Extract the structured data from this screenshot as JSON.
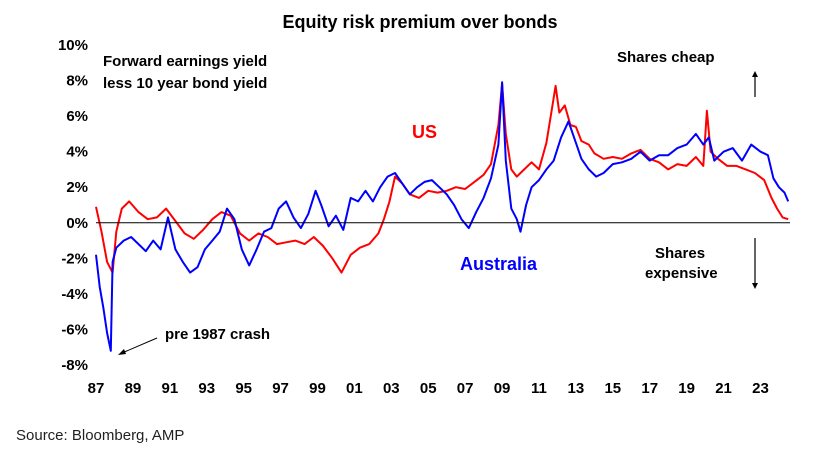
{
  "chart_data": {
    "type": "line",
    "title": "Equity risk premium over bonds",
    "subtitle_lines": [
      "Forward earnings yield",
      "less 10 year bond yield"
    ],
    "xlabel": "",
    "ylabel": "",
    "x_range": [
      1987.0,
      2024.6
    ],
    "ylim": [
      -8,
      10
    ],
    "y_ticks": [
      -8,
      -6,
      -4,
      -2,
      0,
      2,
      4,
      6,
      8,
      10
    ],
    "y_tick_labels": [
      "-8%",
      "-6%",
      "-4%",
      "-2%",
      "0%",
      "2%",
      "4%",
      "6%",
      "8%",
      "10%"
    ],
    "x_ticks": [
      1987,
      1989,
      1991,
      1993,
      1995,
      1997,
      1999,
      2001,
      2003,
      2005,
      2007,
      2009,
      2011,
      2013,
      2015,
      2017,
      2019,
      2021,
      2023
    ],
    "x_tick_labels": [
      "87",
      "89",
      "91",
      "93",
      "95",
      "97",
      "99",
      "01",
      "03",
      "05",
      "07",
      "09",
      "11",
      "13",
      "15",
      "17",
      "19",
      "21",
      "23"
    ],
    "grid": false,
    "series": [
      {
        "name": "US",
        "color": "#ff0000",
        "points": [
          [
            1987.0,
            0.9
          ],
          [
            1987.3,
            -0.5
          ],
          [
            1987.6,
            -2.2
          ],
          [
            1987.9,
            -2.8
          ],
          [
            1988.1,
            -0.5
          ],
          [
            1988.4,
            0.8
          ],
          [
            1988.8,
            1.2
          ],
          [
            1989.3,
            0.6
          ],
          [
            1989.8,
            0.2
          ],
          [
            1990.3,
            0.3
          ],
          [
            1990.8,
            0.8
          ],
          [
            1991.3,
            0.1
          ],
          [
            1991.8,
            -0.6
          ],
          [
            1992.3,
            -0.9
          ],
          [
            1992.8,
            -0.4
          ],
          [
            1993.3,
            0.2
          ],
          [
            1993.8,
            0.6
          ],
          [
            1994.3,
            0.4
          ],
          [
            1994.8,
            -0.6
          ],
          [
            1995.3,
            -1.0
          ],
          [
            1995.8,
            -0.6
          ],
          [
            1996.3,
            -0.8
          ],
          [
            1996.8,
            -1.2
          ],
          [
            1997.3,
            -1.1
          ],
          [
            1997.8,
            -1.0
          ],
          [
            1998.3,
            -1.2
          ],
          [
            1998.8,
            -0.8
          ],
          [
            1999.3,
            -1.3
          ],
          [
            1999.8,
            -2.0
          ],
          [
            2000.3,
            -2.8
          ],
          [
            2000.8,
            -1.8
          ],
          [
            2001.3,
            -1.4
          ],
          [
            2001.8,
            -1.2
          ],
          [
            2002.3,
            -0.6
          ],
          [
            2002.6,
            0.2
          ],
          [
            2002.9,
            1.2
          ],
          [
            2003.2,
            2.6
          ],
          [
            2003.6,
            2.2
          ],
          [
            2004.0,
            1.6
          ],
          [
            2004.5,
            1.4
          ],
          [
            2005.0,
            1.8
          ],
          [
            2005.5,
            1.7
          ],
          [
            2006.0,
            1.8
          ],
          [
            2006.5,
            2.0
          ],
          [
            2007.0,
            1.9
          ],
          [
            2007.5,
            2.3
          ],
          [
            2008.0,
            2.7
          ],
          [
            2008.4,
            3.3
          ],
          [
            2008.8,
            5.5
          ],
          [
            2009.0,
            7.8
          ],
          [
            2009.2,
            5.0
          ],
          [
            2009.5,
            3.0
          ],
          [
            2009.8,
            2.6
          ],
          [
            2010.2,
            3.0
          ],
          [
            2010.6,
            3.4
          ],
          [
            2011.0,
            3.0
          ],
          [
            2011.4,
            4.5
          ],
          [
            2011.7,
            6.4
          ],
          [
            2011.9,
            7.7
          ],
          [
            2012.1,
            6.2
          ],
          [
            2012.4,
            6.6
          ],
          [
            2012.7,
            5.5
          ],
          [
            2013.0,
            5.4
          ],
          [
            2013.3,
            4.6
          ],
          [
            2013.7,
            4.4
          ],
          [
            2014.0,
            3.9
          ],
          [
            2014.5,
            3.6
          ],
          [
            2015.0,
            3.7
          ],
          [
            2015.5,
            3.6
          ],
          [
            2016.0,
            3.9
          ],
          [
            2016.5,
            4.1
          ],
          [
            2017.0,
            3.6
          ],
          [
            2017.5,
            3.4
          ],
          [
            2018.0,
            3.0
          ],
          [
            2018.5,
            3.3
          ],
          [
            2019.0,
            3.2
          ],
          [
            2019.5,
            3.7
          ],
          [
            2019.9,
            3.2
          ],
          [
            2020.1,
            6.3
          ],
          [
            2020.3,
            4.0
          ],
          [
            2020.7,
            3.6
          ],
          [
            2021.2,
            3.2
          ],
          [
            2021.7,
            3.2
          ],
          [
            2022.2,
            3.0
          ],
          [
            2022.7,
            2.8
          ],
          [
            2023.2,
            2.4
          ],
          [
            2023.6,
            1.4
          ],
          [
            2023.9,
            0.8
          ],
          [
            2024.2,
            0.3
          ],
          [
            2024.5,
            0.2
          ]
        ]
      },
      {
        "name": "Australia",
        "color": "#0000ff",
        "points": [
          [
            1987.0,
            -1.8
          ],
          [
            1987.2,
            -3.6
          ],
          [
            1987.4,
            -4.8
          ],
          [
            1987.6,
            -6.2
          ],
          [
            1987.8,
            -7.2
          ],
          [
            1987.9,
            -2.2
          ],
          [
            1988.1,
            -1.4
          ],
          [
            1988.5,
            -1.0
          ],
          [
            1988.9,
            -0.8
          ],
          [
            1989.3,
            -1.2
          ],
          [
            1989.7,
            -1.6
          ],
          [
            1990.1,
            -1.0
          ],
          [
            1990.5,
            -1.5
          ],
          [
            1990.9,
            0.3
          ],
          [
            1991.3,
            -1.5
          ],
          [
            1991.7,
            -2.2
          ],
          [
            1992.1,
            -2.8
          ],
          [
            1992.5,
            -2.5
          ],
          [
            1992.9,
            -1.5
          ],
          [
            1993.3,
            -1.0
          ],
          [
            1993.7,
            -0.5
          ],
          [
            1994.1,
            0.8
          ],
          [
            1994.5,
            0.2
          ],
          [
            1994.9,
            -1.5
          ],
          [
            1995.3,
            -2.4
          ],
          [
            1995.7,
            -1.5
          ],
          [
            1996.1,
            -0.5
          ],
          [
            1996.5,
            -0.3
          ],
          [
            1996.9,
            0.8
          ],
          [
            1997.3,
            1.2
          ],
          [
            1997.7,
            0.3
          ],
          [
            1998.1,
            -0.3
          ],
          [
            1998.5,
            0.5
          ],
          [
            1998.9,
            1.8
          ],
          [
            1999.2,
            1.0
          ],
          [
            1999.6,
            -0.2
          ],
          [
            2000.0,
            0.4
          ],
          [
            2000.4,
            -0.4
          ],
          [
            2000.8,
            1.4
          ],
          [
            2001.2,
            1.2
          ],
          [
            2001.6,
            1.8
          ],
          [
            2002.0,
            1.2
          ],
          [
            2002.4,
            2.0
          ],
          [
            2002.8,
            2.6
          ],
          [
            2003.2,
            2.8
          ],
          [
            2003.6,
            2.2
          ],
          [
            2004.0,
            1.6
          ],
          [
            2004.4,
            2.0
          ],
          [
            2004.8,
            2.3
          ],
          [
            2005.2,
            2.4
          ],
          [
            2005.6,
            2.0
          ],
          [
            2006.0,
            1.6
          ],
          [
            2006.4,
            1.0
          ],
          [
            2006.8,
            0.2
          ],
          [
            2007.2,
            -0.3
          ],
          [
            2007.6,
            0.6
          ],
          [
            2008.0,
            1.4
          ],
          [
            2008.4,
            2.5
          ],
          [
            2008.8,
            4.4
          ],
          [
            2009.0,
            7.9
          ],
          [
            2009.2,
            3.5
          ],
          [
            2009.5,
            0.8
          ],
          [
            2009.8,
            0.2
          ],
          [
            2010.0,
            -0.5
          ],
          [
            2010.3,
            1.0
          ],
          [
            2010.6,
            2.0
          ],
          [
            2011.0,
            2.4
          ],
          [
            2011.4,
            3.0
          ],
          [
            2011.8,
            3.5
          ],
          [
            2012.2,
            4.8
          ],
          [
            2012.6,
            5.7
          ],
          [
            2013.0,
            4.5
          ],
          [
            2013.3,
            3.6
          ],
          [
            2013.7,
            3.0
          ],
          [
            2014.1,
            2.6
          ],
          [
            2014.5,
            2.8
          ],
          [
            2015.0,
            3.3
          ],
          [
            2015.5,
            3.4
          ],
          [
            2016.0,
            3.6
          ],
          [
            2016.5,
            4.0
          ],
          [
            2017.0,
            3.5
          ],
          [
            2017.5,
            3.8
          ],
          [
            2018.0,
            3.8
          ],
          [
            2018.5,
            4.2
          ],
          [
            2019.0,
            4.4
          ],
          [
            2019.5,
            5.0
          ],
          [
            2019.9,
            4.4
          ],
          [
            2020.2,
            4.8
          ],
          [
            2020.5,
            3.5
          ],
          [
            2021.0,
            4.0
          ],
          [
            2021.5,
            4.2
          ],
          [
            2022.0,
            3.5
          ],
          [
            2022.5,
            4.4
          ],
          [
            2023.0,
            4.0
          ],
          [
            2023.4,
            3.8
          ],
          [
            2023.7,
            2.5
          ],
          [
            2024.0,
            2.0
          ],
          [
            2024.3,
            1.7
          ],
          [
            2024.5,
            1.2
          ]
        ]
      }
    ],
    "annotations": {
      "shares_cheap": "Shares cheap",
      "shares_expensive_line1": "Shares",
      "shares_expensive_line2": "expensive",
      "crash": "pre 1987 crash"
    }
  },
  "source": "Source: Bloomberg, AMP"
}
